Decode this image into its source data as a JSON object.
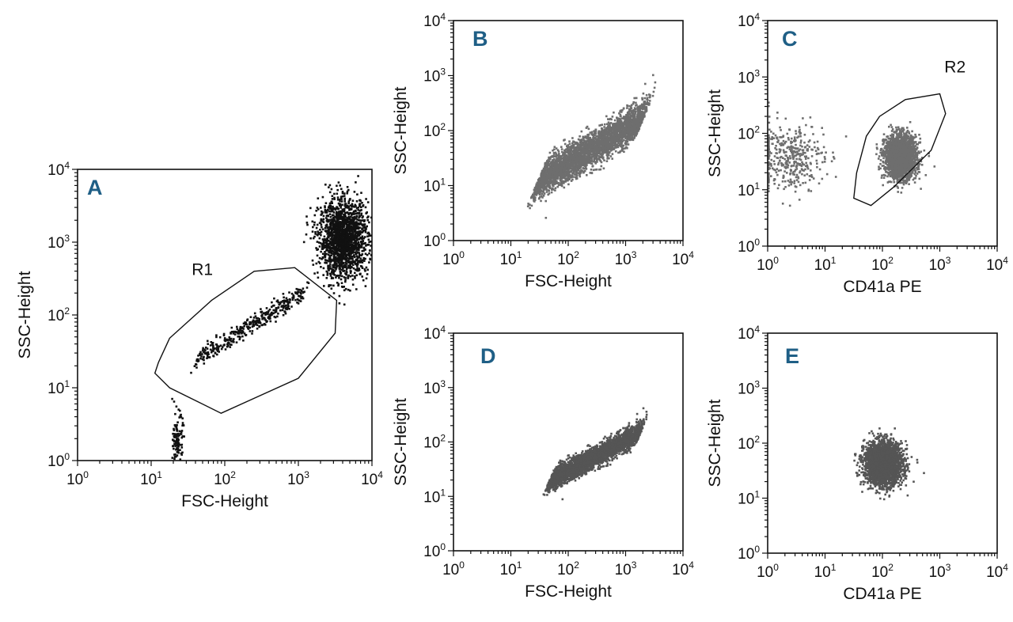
{
  "colors": {
    "letter": "#1f5f86",
    "axis": "#111111",
    "dots_dark": "#111111",
    "dots_gray": "#6e6e6e",
    "dots_darkgray": "#555555"
  },
  "chart_data": [
    {
      "type": "scatter",
      "panel": "A",
      "xlabel": "FSC-Height",
      "ylabel": "SSC-Height",
      "xscale": "log",
      "yscale": "log",
      "xlim": [
        1,
        10000
      ],
      "ylim": [
        1,
        10000
      ],
      "tick_labels": [
        "10",
        "10",
        "10",
        "10",
        "10"
      ],
      "tick_exponents": [
        "0",
        "1",
        "2",
        "3",
        "4"
      ],
      "gates": [
        {
          "name": "R1",
          "label_at_log": [
            1.55,
            2.55
          ],
          "polygon_log": [
            [
              1.1,
              1.35
            ],
            [
              1.25,
              1.68
            ],
            [
              1.82,
              2.2
            ],
            [
              2.4,
              2.6
            ],
            [
              2.95,
              2.65
            ],
            [
              3.52,
              2.2
            ],
            [
              3.5,
              1.75
            ],
            [
              3.0,
              1.13
            ],
            [
              1.95,
              0.65
            ],
            [
              1.25,
              1.0
            ],
            [
              1.05,
              1.2
            ]
          ]
        }
      ],
      "populations": [
        {
          "name": "cell cluster",
          "color": "dots_dark",
          "shape": "ellipse",
          "center_log": [
            3.6,
            3.05
          ],
          "spread_log": [
            0.3,
            0.48
          ],
          "n": 1800
        },
        {
          "name": "platelet diagonal",
          "color": "dots_dark",
          "shape": "diagonal",
          "from_log": [
            1.6,
            1.4
          ],
          "to_log": [
            3.1,
            2.35
          ],
          "width_log": 0.16,
          "n": 380
        },
        {
          "name": "debris",
          "color": "dots_dark",
          "shape": "ellipse",
          "center_log": [
            1.35,
            0.3
          ],
          "spread_log": [
            0.06,
            0.32
          ],
          "n": 120
        }
      ]
    },
    {
      "type": "scatter",
      "panel": "B",
      "xlabel": "FSC-Height",
      "ylabel": "SSC-Height",
      "xscale": "log",
      "yscale": "log",
      "xlim": [
        1,
        10000
      ],
      "ylim": [
        1,
        10000
      ],
      "tick_labels": [
        "10",
        "10",
        "10",
        "10",
        "10"
      ],
      "tick_exponents": [
        "0",
        "1",
        "2",
        "3",
        "4"
      ],
      "gates": [],
      "populations": [
        {
          "name": "gated R1 events",
          "color": "dots_gray",
          "shape": "diagonal",
          "from_log": [
            1.45,
            1.1
          ],
          "to_log": [
            3.3,
            2.25
          ],
          "width_log": 0.42,
          "n": 3200
        }
      ]
    },
    {
      "type": "scatter",
      "panel": "C",
      "xlabel": "CD41a PE",
      "ylabel": "SSC-Height",
      "xscale": "log",
      "yscale": "log",
      "xlim": [
        1,
        10000
      ],
      "ylim": [
        1,
        10000
      ],
      "tick_labels": [
        "10",
        "10",
        "10",
        "10",
        "10"
      ],
      "tick_exponents": [
        "0",
        "1",
        "2",
        "3",
        "4"
      ],
      "gates": [
        {
          "name": "R2",
          "label_at_log": [
            3.08,
            3.08
          ],
          "polygon_log": [
            [
              1.55,
              1.3
            ],
            [
              1.72,
              1.95
            ],
            [
              1.95,
              2.3
            ],
            [
              2.4,
              2.6
            ],
            [
              3.0,
              2.7
            ],
            [
              3.1,
              2.35
            ],
            [
              2.85,
              1.7
            ],
            [
              2.2,
              1.05
            ],
            [
              1.8,
              0.72
            ],
            [
              1.5,
              0.85
            ]
          ]
        }
      ],
      "populations": [
        {
          "name": "CD41a+ platelets",
          "color": "dots_gray",
          "shape": "ellipse",
          "center_log": [
            2.3,
            1.6
          ],
          "spread_log": [
            0.25,
            0.34
          ],
          "n": 2400
        },
        {
          "name": "CD41a- events",
          "color": "dots_gray",
          "shape": "ellipse",
          "center_log": [
            0.35,
            1.6
          ],
          "spread_log": [
            0.55,
            0.55
          ],
          "n": 400
        }
      ]
    },
    {
      "type": "scatter",
      "panel": "D",
      "xlabel": "FSC-Height",
      "ylabel": "SSC-Height",
      "xscale": "log",
      "yscale": "log",
      "xlim": [
        1,
        10000
      ],
      "ylim": [
        1,
        10000
      ],
      "tick_labels": [
        "10",
        "10",
        "10",
        "10",
        "10"
      ],
      "tick_exponents": [
        "0",
        "1",
        "2",
        "3",
        "4"
      ],
      "gates": [],
      "populations": [
        {
          "name": "gated R2 events",
          "color": "dots_darkgray",
          "shape": "diagonal",
          "from_log": [
            1.65,
            1.3
          ],
          "to_log": [
            3.25,
            2.2
          ],
          "width_log": 0.25,
          "n": 2800
        }
      ]
    },
    {
      "type": "scatter",
      "panel": "E",
      "xlabel": "CD41a PE",
      "ylabel": "SSC-Height",
      "xscale": "log",
      "yscale": "log",
      "xlim": [
        1,
        10000
      ],
      "ylim": [
        1,
        10000
      ],
      "tick_labels": [
        "10",
        "10",
        "10",
        "10",
        "10"
      ],
      "tick_exponents": [
        "0",
        "1",
        "2",
        "3",
        "4"
      ],
      "gates": [],
      "populations": [
        {
          "name": "gated R2 events",
          "color": "dots_darkgray",
          "shape": "ellipse",
          "center_log": [
            2.0,
            1.65
          ],
          "spread_log": [
            0.3,
            0.35
          ],
          "n": 2600
        }
      ]
    }
  ]
}
